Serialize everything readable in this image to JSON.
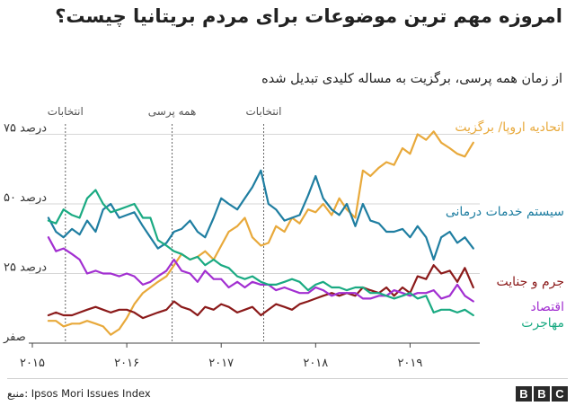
{
  "title": "امروزه مهم ترین موضوعات برای مردم بریتانیا چیست؟",
  "subtitle": "از زمان همه پرسی، برگزیت به مساله کلیدی تبدیل شده",
  "source": "منبع: Ipsos Mori Issues Index",
  "logo": [
    "B",
    "B",
    "C"
  ],
  "chart_data": {
    "type": "line",
    "y_ticks": [
      {
        "value": 75,
        "label": "۷۵ درصد"
      },
      {
        "value": 50,
        "label": "۵۰ درصد"
      },
      {
        "value": 25,
        "label": "۲۵ درصد"
      },
      {
        "value": 0,
        "label": "صفر"
      }
    ],
    "ylim": [
      0,
      80
    ],
    "xlim": [
      2015.0,
      2019.7
    ],
    "x_ticks": [
      {
        "value": 2015.0,
        "label": "۲۰۱۵"
      },
      {
        "value": 2016.0,
        "label": "۲۰۱۶"
      },
      {
        "value": 2017.0,
        "label": "۲۰۱۷"
      },
      {
        "value": 2018.0,
        "label": "۲۰۱۸"
      },
      {
        "value": 2019.0,
        "label": "۲۰۱۹"
      }
    ],
    "events": [
      {
        "x": 2015.35,
        "label": "انتخابات"
      },
      {
        "x": 2016.48,
        "label": "همه پرسی"
      },
      {
        "x": 2017.45,
        "label": "انتخابات"
      }
    ],
    "x": [
      2015.17,
      2015.25,
      2015.33,
      2015.42,
      2015.5,
      2015.58,
      2015.67,
      2015.75,
      2015.83,
      2015.92,
      2016.0,
      2016.08,
      2016.17,
      2016.25,
      2016.33,
      2016.42,
      2016.5,
      2016.58,
      2016.67,
      2016.75,
      2016.83,
      2016.92,
      2017.0,
      2017.08,
      2017.17,
      2017.25,
      2017.33,
      2017.42,
      2017.5,
      2017.58,
      2017.67,
      2017.75,
      2017.83,
      2017.92,
      2018.0,
      2018.08,
      2018.17,
      2018.25,
      2018.33,
      2018.42,
      2018.5,
      2018.58,
      2018.67,
      2018.75,
      2018.83,
      2018.92,
      2019.0,
      2019.08,
      2019.17,
      2019.25,
      2019.33,
      2019.42,
      2019.5,
      2019.58,
      2019.67
    ],
    "series": [
      {
        "name": "اتحادیه اروپا/ برگزیت",
        "color": "#e8a93b",
        "values": [
          8,
          8,
          6,
          7,
          7,
          8,
          7,
          6,
          3,
          5,
          9,
          14,
          18,
          20,
          22,
          24,
          28,
          32,
          30,
          31,
          33,
          30,
          35,
          40,
          42,
          45,
          38,
          35,
          36,
          42,
          40,
          45,
          43,
          48,
          47,
          50,
          46,
          52,
          48,
          45,
          62,
          60,
          63,
          65,
          64,
          70,
          68,
          75,
          73,
          76,
          72,
          70,
          68,
          67,
          72
        ]
      },
      {
        "name": "سیستم خدمات درمانی",
        "color": "#1f7ea1",
        "values": [
          45,
          40,
          38,
          41,
          39,
          44,
          40,
          48,
          50,
          45,
          46,
          47,
          42,
          38,
          34,
          36,
          40,
          41,
          44,
          40,
          38,
          45,
          52,
          50,
          48,
          52,
          56,
          62,
          50,
          48,
          44,
          45,
          46,
          53,
          60,
          52,
          48,
          46,
          50,
          42,
          50,
          44,
          43,
          40,
          40,
          41,
          38,
          42,
          38,
          30,
          38,
          40,
          36,
          38,
          34
        ]
      },
      {
        "name": "جرم و جنایت",
        "color": "#8b1a1a",
        "values": [
          10,
          11,
          10,
          10,
          11,
          12,
          13,
          12,
          11,
          12,
          12,
          11,
          9,
          10,
          11,
          12,
          15,
          13,
          12,
          10,
          13,
          12,
          14,
          13,
          11,
          12,
          13,
          10,
          12,
          14,
          13,
          12,
          14,
          15,
          16,
          17,
          18,
          17,
          18,
          17,
          20,
          19,
          18,
          20,
          17,
          20,
          18,
          24,
          23,
          28,
          25,
          26,
          22,
          27,
          20
        ]
      },
      {
        "name": "اقتصاد",
        "color": "#a22fd1",
        "values": [
          38,
          33,
          34,
          32,
          30,
          25,
          26,
          25,
          25,
          24,
          25,
          24,
          21,
          22,
          24,
          26,
          30,
          26,
          25,
          22,
          26,
          23,
          23,
          20,
          22,
          20,
          22,
          21,
          21,
          19,
          20,
          19,
          18,
          18,
          20,
          19,
          17,
          18,
          18,
          18,
          16,
          16,
          17,
          17,
          19,
          18,
          17,
          18,
          18,
          19,
          16,
          17,
          21,
          17,
          15
        ]
      },
      {
        "name": "مهاجرت",
        "color": "#1aaa82",
        "values": [
          44,
          43,
          48,
          46,
          45,
          52,
          55,
          50,
          47,
          48,
          49,
          50,
          45,
          45,
          37,
          35,
          33,
          32,
          30,
          31,
          28,
          30,
          28,
          27,
          24,
          23,
          24,
          22,
          21,
          21,
          22,
          23,
          22,
          19,
          21,
          22,
          20,
          20,
          19,
          20,
          20,
          18,
          18,
          17,
          16,
          17,
          18,
          16,
          17,
          11,
          12,
          12,
          11,
          12,
          10
        ]
      }
    ]
  }
}
